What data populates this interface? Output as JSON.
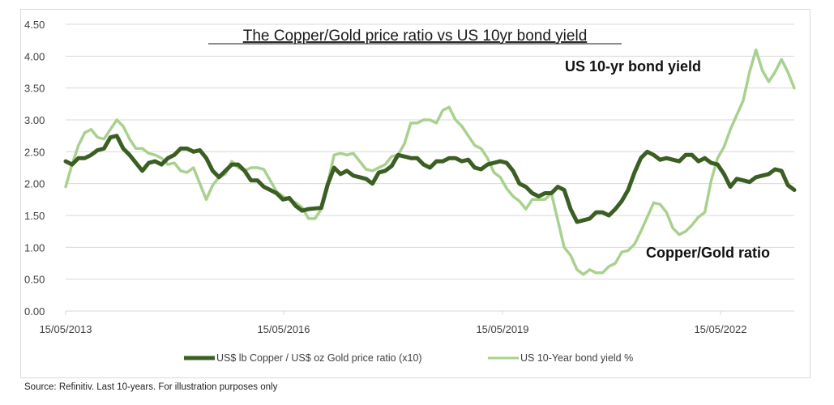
{
  "chart_data": {
    "type": "line",
    "title": "The Copper/Gold price ratio vs US 10yr bond yield",
    "xlabel": "",
    "ylabel": "",
    "ylim": [
      0,
      4.5
    ],
    "yticks": [
      "0.00",
      "0.50",
      "1.00",
      "1.50",
      "2.00",
      "2.50",
      "3.00",
      "3.50",
      "4.00",
      "4.50"
    ],
    "xticks": [
      "15/05/2013",
      "15/05/2016",
      "15/05/2019",
      "15/05/2022"
    ],
    "x_range": [
      "15/05/2013",
      "15/05/2023"
    ],
    "grid": true,
    "legend_position": "bottom",
    "annotations": [
      "US 10-yr bond yield",
      "Copper/Gold ratio"
    ],
    "x_frequency": "quarterly",
    "series": [
      {
        "name": "US$ lb Copper / US$ oz Gold price ratio (x10)",
        "color": "#3b5e22",
        "values": [
          2.35,
          2.4,
          2.45,
          2.55,
          2.75,
          2.45,
          2.2,
          2.35,
          2.4,
          2.55,
          2.5,
          2.4,
          2.1,
          2.3,
          2.2,
          2.05,
          1.9,
          1.75,
          1.65,
          1.6,
          1.62,
          2.25,
          2.2,
          2.1,
          2.0,
          2.2,
          2.45,
          2.4,
          2.3,
          2.35,
          2.4,
          2.35,
          2.25,
          2.3,
          2.35,
          2.2,
          1.95,
          1.8,
          1.85,
          1.9,
          1.4,
          1.45,
          1.55,
          1.6,
          1.9,
          2.4,
          2.45,
          2.4,
          2.35,
          2.45,
          2.4,
          2.3,
          1.95,
          2.05,
          2.1,
          2.15,
          2.2,
          1.9
        ]
      },
      {
        "name": "US 10-Year bond yield %",
        "color": "#a9d18e",
        "values": [
          1.95,
          2.6,
          2.85,
          2.7,
          3.0,
          2.7,
          2.55,
          2.45,
          2.3,
          2.2,
          2.25,
          1.75,
          2.1,
          2.35,
          2.2,
          2.25,
          2.05,
          1.8,
          1.7,
          1.45,
          1.6,
          2.45,
          2.45,
          2.35,
          2.2,
          2.3,
          2.45,
          2.95,
          3.0,
          2.95,
          3.2,
          2.9,
          2.6,
          2.4,
          2.1,
          1.8,
          1.6,
          1.75,
          1.85,
          1.0,
          0.65,
          0.65,
          0.6,
          0.75,
          0.95,
          1.25,
          1.7,
          1.55,
          1.2,
          1.35,
          1.55,
          2.4,
          2.85,
          3.3,
          4.1,
          3.6,
          3.95,
          3.5
        ]
      }
    ]
  },
  "source_note": "Source: Refinitiv. Last 10-years. For illustration purposes only"
}
